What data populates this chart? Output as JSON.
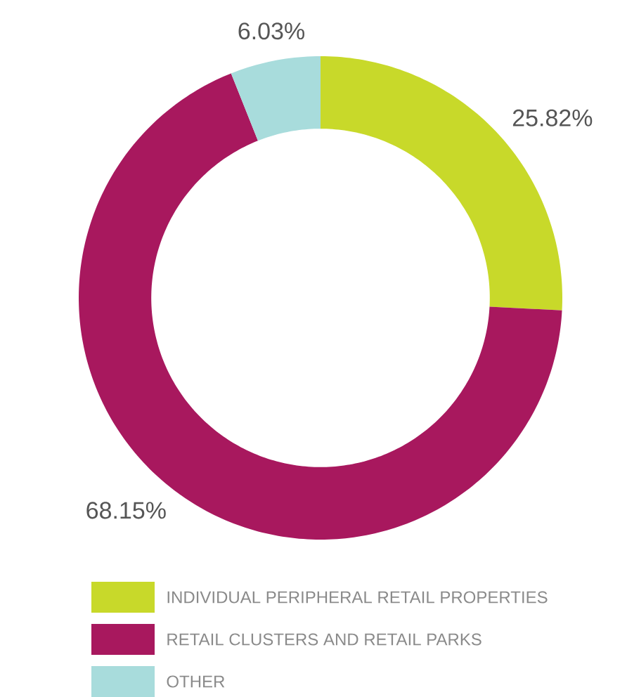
{
  "chart_data": {
    "type": "donut",
    "categories": [
      "INDIVIDUAL PERIPHERAL RETAIL PROPERTIES",
      "RETAIL CLUSTERS AND RETAIL PARKS",
      "OTHER"
    ],
    "values": [
      25.82,
      68.15,
      6.03
    ],
    "colors": [
      "#c8d92a",
      "#a8185e",
      "#a8dcdc"
    ],
    "value_labels": [
      "25.82%",
      "68.15%",
      "6.03%"
    ],
    "legend": "bottom"
  }
}
